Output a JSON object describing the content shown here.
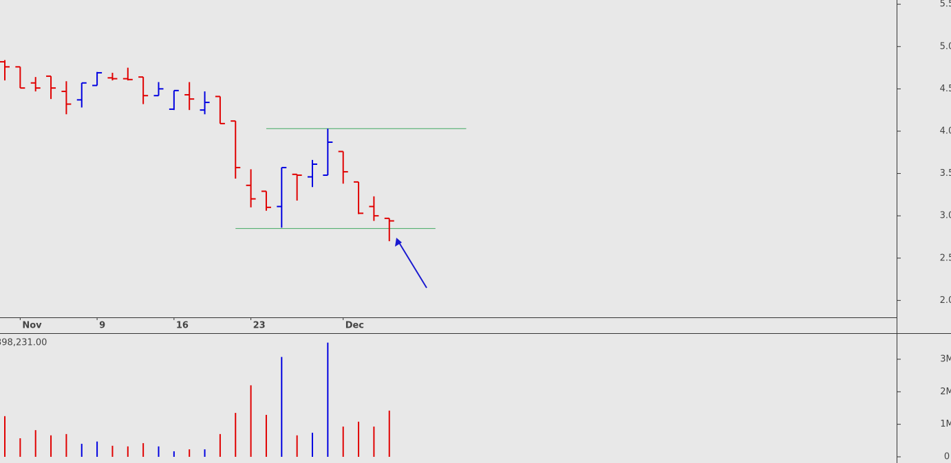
{
  "chart_data": [
    {
      "type": "ohlc",
      "categories": [
        null,
        "Nov",
        null,
        null,
        null,
        null,
        "9",
        null,
        null,
        null,
        null,
        "16",
        null,
        null,
        null,
        null,
        "23",
        null,
        null,
        null,
        null,
        null,
        "Dec",
        null,
        null,
        null
      ],
      "open": [
        4.82,
        4.76,
        4.57,
        4.65,
        4.47,
        4.37,
        4.54,
        4.63,
        4.62,
        4.64,
        4.42,
        4.26,
        4.43,
        4.25,
        4.41,
        4.12,
        3.36,
        3.29,
        3.11,
        3.49,
        3.46,
        3.48,
        3.76,
        3.4,
        3.11,
        2.97
      ],
      "high": [
        4.84,
        4.76,
        4.64,
        4.65,
        4.59,
        4.57,
        4.7,
        4.69,
        4.75,
        4.64,
        4.58,
        4.48,
        4.58,
        4.47,
        4.41,
        4.12,
        3.55,
        3.29,
        3.57,
        3.49,
        3.66,
        4.03,
        3.76,
        3.4,
        3.23,
        2.97
      ],
      "low": [
        4.6,
        4.51,
        4.47,
        4.38,
        4.2,
        4.28,
        4.54,
        4.6,
        4.6,
        4.32,
        4.42,
        4.25,
        4.25,
        4.2,
        4.09,
        3.44,
        3.1,
        3.06,
        2.86,
        3.18,
        3.34,
        3.48,
        3.38,
        3.02,
        2.94,
        2.7
      ],
      "close": [
        4.76,
        4.51,
        4.51,
        4.51,
        4.32,
        4.57,
        4.69,
        4.62,
        4.61,
        4.42,
        4.5,
        4.48,
        4.38,
        4.34,
        4.09,
        3.57,
        3.2,
        3.1,
        3.57,
        3.48,
        3.61,
        3.87,
        3.52,
        3.03,
        3.0,
        2.94
      ],
      "up_color": "#0000e0",
      "down_color": "#e00000",
      "ylim": [
        1.8,
        5.55
      ],
      "yticks": [
        {
          "value": 2,
          "label": "2.0"
        },
        2.5,
        {
          "value": 3,
          "label": "3.0"
        },
        3.5,
        {
          "value": 4,
          "label": "4.0"
        },
        4.5,
        {
          "value": 5,
          "label": "5.0"
        },
        5.5
      ],
      "levels": [
        {
          "value": 4.03,
          "x": [
            17,
            30
          ],
          "color": "#40a860"
        },
        {
          "value": 2.85,
          "x": [
            15,
            28
          ],
          "color": "#40a860"
        }
      ]
    },
    {
      "type": "bar",
      "label": "398,231.00",
      "values": [
        1250000,
        570000,
        820000,
        660000,
        700000,
        400000,
        470000,
        340000,
        320000,
        420000,
        320000,
        170000,
        230000,
        230000,
        700000,
        1350000,
        2200000,
        1290000,
        3070000,
        660000,
        740000,
        3510000,
        930000,
        1080000,
        930000,
        1420000
      ],
      "ylim": [
        0,
        3780000
      ],
      "yticks": [
        0,
        {
          "value": 1000000,
          "label": "1M"
        },
        {
          "value": 2000000,
          "label": "2M"
        },
        {
          "value": 3000000,
          "label": "3M"
        }
      ]
    }
  ]
}
